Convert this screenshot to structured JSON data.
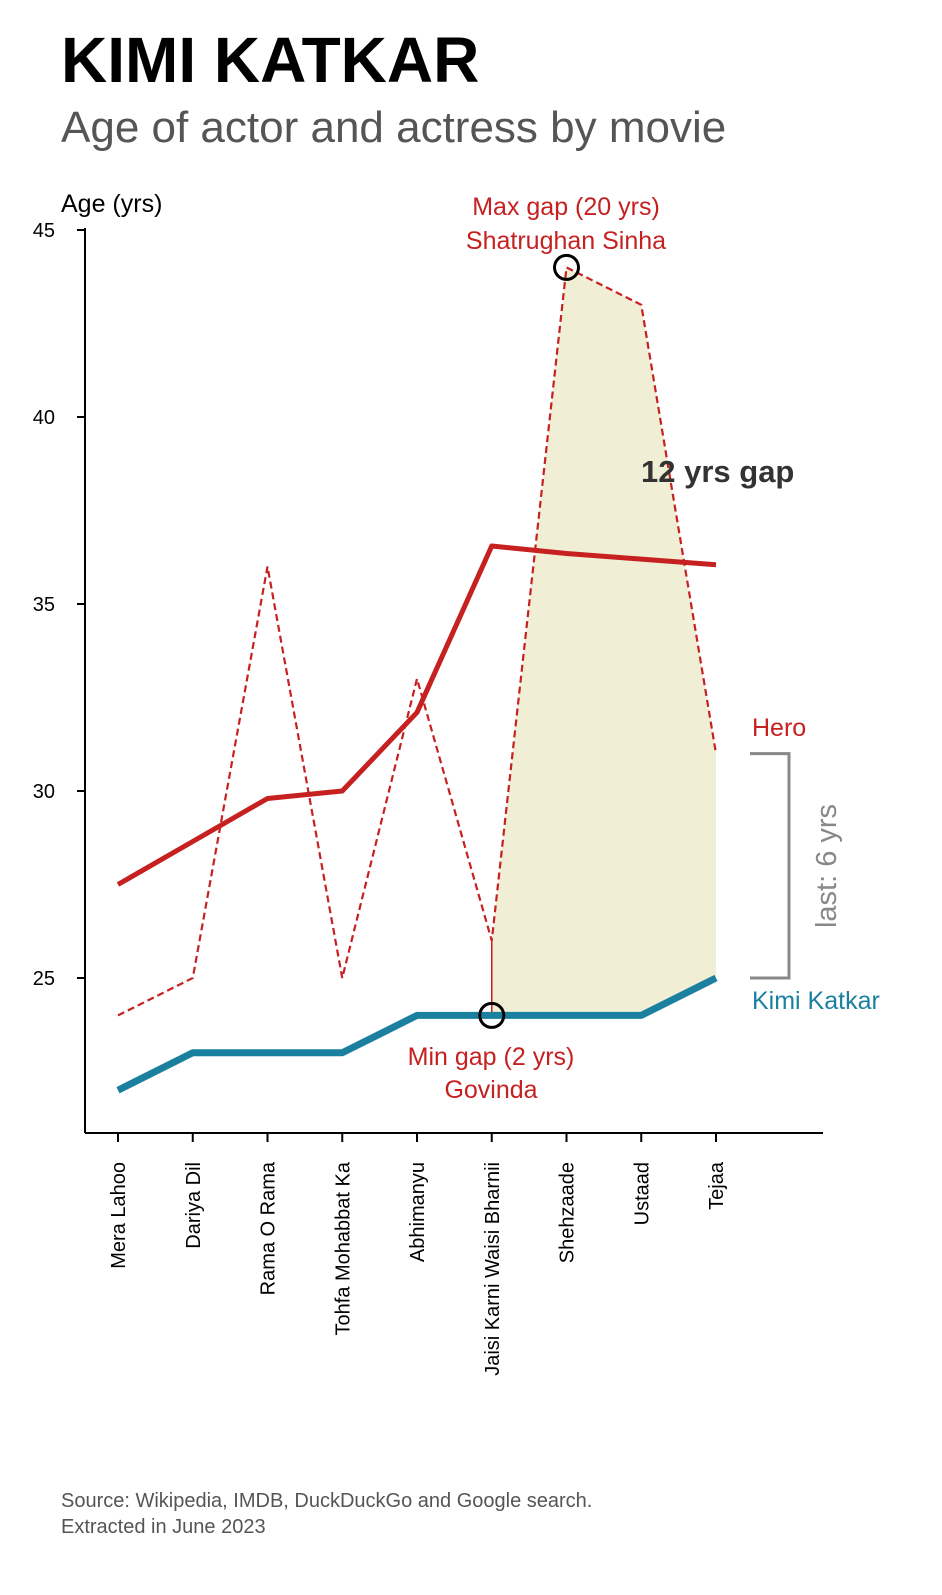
{
  "chart_data": {
    "type": "line",
    "title": "KIMI KATKAR",
    "subtitle": "Age of actor and actress by movie",
    "ylabel": "Age (yrs)",
    "xlabel": "",
    "ylim": [
      21,
      45
    ],
    "yticks": [
      25,
      30,
      35,
      40,
      45
    ],
    "categories": [
      "Mera Lahoo",
      "Dariya Dil",
      "Rama O Rama",
      "Tohfa Mohabbat Ka",
      "Abhimanyu",
      "Jaisi Karni Waisi Bharnii",
      "Shehzaade",
      "Ustaad",
      "Tejaa"
    ],
    "series": [
      {
        "name": "Kimi Katkar",
        "style": "solid",
        "color": "#1b80a0",
        "values": [
          22,
          23,
          23,
          23,
          24,
          24,
          24,
          24,
          25
        ]
      },
      {
        "name": "Hero",
        "style": "dashed",
        "color": "#c62020",
        "values": [
          24,
          25,
          36,
          25,
          33,
          26,
          44,
          43,
          31
        ]
      },
      {
        "name": "",
        "style": "trend",
        "color": "#c62020",
        "values": [
          27.5,
          28.65,
          29.8,
          30,
          32.1,
          36.55,
          36.35,
          36.2,
          36.05
        ]
      }
    ],
    "shaded_range": {
      "from_category": "Jaisi Karni Waisi Bharnii",
      "to_category": "Tejaa",
      "color": "#f0eed4"
    },
    "annotations": {
      "max_gap_line1": "Max gap (20 yrs)",
      "max_gap_line2": "Shatrughan Sinha",
      "max_gap_category": "Shehzaade",
      "max_gap_value": 44,
      "min_gap_line1": "Min gap (2 yrs)",
      "min_gap_line2": "Govinda",
      "min_gap_category": "Jaisi Karni Waisi Bharnii",
      "min_gap_value": 24,
      "gap_text": "12 yrs gap",
      "hero_label": "Hero",
      "kimi_label": "Kimi Katkar",
      "last_gap_text": "last: 6 yrs"
    },
    "grid": false,
    "legend": "none"
  },
  "source_line1": "Source: Wikipedia, IMDB, DuckDuckGo and Google search.",
  "source_line2": "Extracted in June 2023"
}
